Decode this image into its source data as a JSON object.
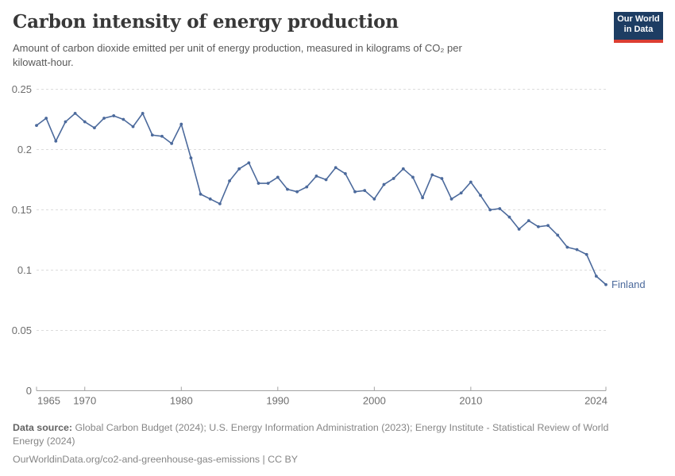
{
  "header": {
    "title": "Carbon intensity of energy production",
    "subtitle_lines": [
      "Amount of carbon dioxide emitted per unit of energy production, measured in kilograms of CO₂ per",
      "kilowatt-hour."
    ],
    "logo": {
      "line1": "Our World",
      "line2": "in Data"
    }
  },
  "chart_data": {
    "type": "line",
    "title": "Carbon intensity of energy production",
    "ylabel": "",
    "xlabel": "",
    "xlim": [
      1965,
      2024
    ],
    "ylim": [
      0,
      0.25
    ],
    "x_ticks": [
      1965,
      1970,
      1980,
      1990,
      2000,
      2010,
      2024
    ],
    "y_ticks": [
      0,
      0.05,
      0.1,
      0.15,
      0.2,
      0.25
    ],
    "grid": "horizontal-dashed",
    "legend_position": "end-of-line-label",
    "end_label": "Finland",
    "series": [
      {
        "name": "Finland",
        "color": "#4c6a9c",
        "x": [
          1965,
          1966,
          1967,
          1968,
          1969,
          1970,
          1971,
          1972,
          1973,
          1974,
          1975,
          1976,
          1977,
          1978,
          1979,
          1980,
          1981,
          1982,
          1983,
          1984,
          1985,
          1986,
          1987,
          1988,
          1989,
          1990,
          1991,
          1992,
          1993,
          1994,
          1995,
          1996,
          1997,
          1998,
          1999,
          2000,
          2001,
          2002,
          2003,
          2004,
          2005,
          2006,
          2007,
          2008,
          2009,
          2010,
          2011,
          2012,
          2013,
          2014,
          2015,
          2016,
          2017,
          2018,
          2019,
          2020,
          2021,
          2022,
          2023,
          2024
        ],
        "values": [
          0.22,
          0.226,
          0.207,
          0.223,
          0.23,
          0.223,
          0.218,
          0.226,
          0.228,
          0.225,
          0.219,
          0.23,
          0.212,
          0.211,
          0.205,
          0.221,
          0.193,
          0.163,
          0.159,
          0.155,
          0.174,
          0.184,
          0.189,
          0.172,
          0.172,
          0.177,
          0.167,
          0.165,
          0.169,
          0.178,
          0.175,
          0.185,
          0.18,
          0.165,
          0.166,
          0.159,
          0.171,
          0.176,
          0.184,
          0.177,
          0.16,
          0.179,
          0.176,
          0.159,
          0.164,
          0.173,
          0.162,
          0.15,
          0.151,
          0.144,
          0.134,
          0.141,
          0.136,
          0.137,
          0.129,
          0.119,
          0.117,
          0.113,
          0.095,
          0.088
        ]
      }
    ]
  },
  "footer": {
    "source_label": "Data source:",
    "source_lines": [
      "Global Carbon Budget (2024); U.S. Energy Information Administration (2023); Energy Institute - Statistical Review of World",
      "Energy (2024)"
    ],
    "url_line": "OurWorldinData.org/co2-and-greenhouse-gas-emissions | CC BY"
  },
  "colors": {
    "line": "#4c6a9c",
    "grid": "#dcdcdc",
    "axis": "#a3a3a3",
    "tick_label": "#6e6e6e",
    "title": "#383838",
    "subtitle": "#595959",
    "footer_text": "#868686",
    "logo_bg": "#1d3d63",
    "logo_red": "#dc3e32"
  }
}
